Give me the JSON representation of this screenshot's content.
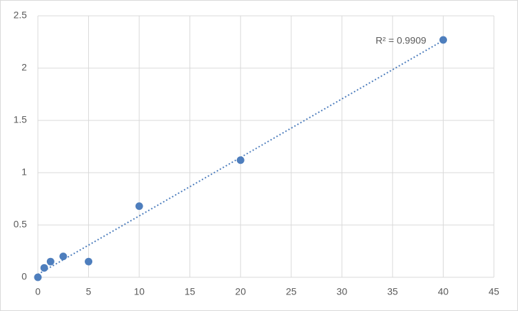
{
  "chart_data": {
    "type": "scatter",
    "annotation": "R² = 0.9909",
    "series": [
      {
        "color": "#4e7ebd",
        "x": [
          0,
          0.625,
          1.25,
          2.5,
          5,
          10,
          20,
          40
        ],
        "values": [
          0,
          0.09,
          0.15,
          0.2,
          0.15,
          0.68,
          1.12,
          2.27
        ]
      }
    ],
    "trendline": "linear",
    "xlim": [
      0,
      45
    ],
    "xticks": [
      0,
      5,
      10,
      15,
      20,
      25,
      30,
      35,
      40,
      45
    ],
    "ylim": [
      0,
      2.5
    ],
    "yticks": [
      0,
      0.5,
      1,
      1.5,
      2,
      2.5
    ],
    "grid": true
  }
}
